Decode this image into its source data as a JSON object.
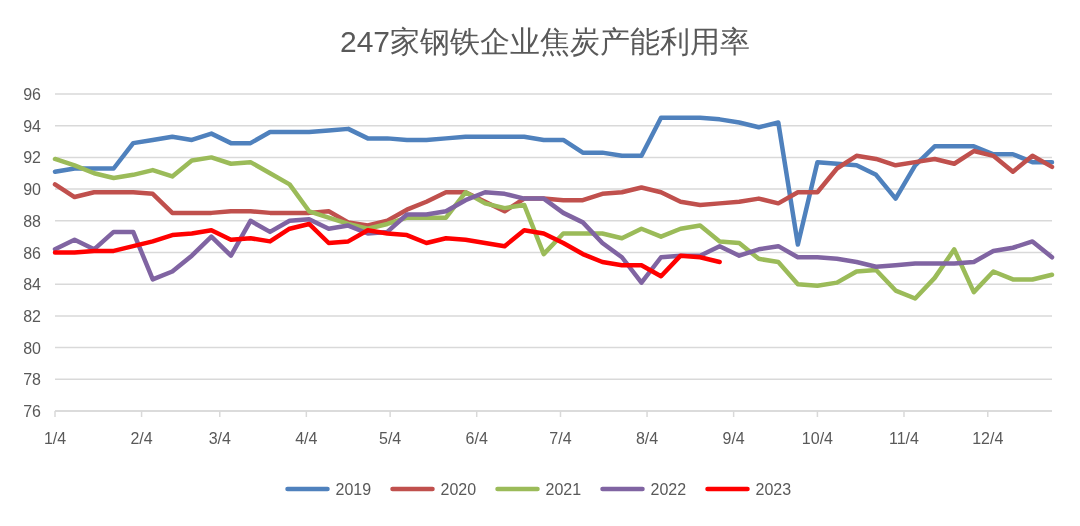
{
  "chart_data": {
    "type": "line",
    "title": "247家钢铁企业焦炭产能利用率",
    "x": [
      "--01-04",
      "--01-11",
      "--01-18",
      "--01-25",
      "--02-01",
      "--02-08",
      "--02-15",
      "--02-22",
      "--03-01",
      "--03-08",
      "--03-15",
      "--03-22",
      "--03-29",
      "--04-05",
      "--04-12",
      "--04-19",
      "--04-26",
      "--05-03",
      "--05-10",
      "--05-17",
      "--05-24",
      "--05-31",
      "--06-07",
      "--06-14",
      "--06-21",
      "--06-28",
      "--07-05",
      "--07-12",
      "--07-19",
      "--07-26",
      "--08-02",
      "--08-09",
      "--08-16",
      "--08-23",
      "--08-30",
      "--09-06",
      "--09-13",
      "--09-20",
      "--09-27",
      "--10-04",
      "--10-11",
      "--10-18",
      "--10-25",
      "--11-01",
      "--11-08",
      "--11-15",
      "--11-22",
      "--11-29",
      "--12-06",
      "--12-13",
      "--12-20",
      "--12-27"
    ],
    "xlim": [
      "--01-04",
      "--12-27"
    ],
    "xticks": [
      {
        "value": "--01-04",
        "label": "1/4"
      },
      {
        "value": "--02-04",
        "label": "2/4"
      },
      {
        "value": "--03-04",
        "label": "3/4"
      },
      {
        "value": "--04-04",
        "label": "4/4"
      },
      {
        "value": "--05-04",
        "label": "5/4"
      },
      {
        "value": "--06-04",
        "label": "6/4"
      },
      {
        "value": "--07-04",
        "label": "7/4"
      },
      {
        "value": "--08-04",
        "label": "8/4"
      },
      {
        "value": "--09-04",
        "label": "9/4"
      },
      {
        "value": "--10-04",
        "label": "10/4"
      },
      {
        "value": "--11-04",
        "label": "11/4"
      },
      {
        "value": "--12-04",
        "label": "12/4"
      }
    ],
    "ylim": [
      76,
      96
    ],
    "yticks": [
      76,
      78,
      80,
      82,
      84,
      86,
      88,
      90,
      92,
      94,
      96
    ],
    "grid": "y",
    "legend": "bottom",
    "line_style": "solid",
    "series": [
      {
        "name": "2019",
        "color": "#4f81bd",
        "values": [
          91.1,
          91.3,
          91.3,
          91.3,
          92.9,
          93.1,
          93.3,
          93.1,
          93.5,
          92.9,
          92.9,
          93.6,
          93.6,
          93.6,
          93.7,
          93.8,
          93.2,
          93.2,
          93.1,
          93.1,
          93.2,
          93.3,
          93.3,
          93.3,
          93.3,
          93.1,
          93.1,
          92.3,
          92.3,
          92.1,
          92.1,
          94.5,
          94.5,
          94.5,
          94.4,
          94.2,
          93.9,
          94.2,
          86.5,
          91.7,
          91.6,
          91.5,
          90.9,
          89.4,
          91.5,
          92.7,
          92.7,
          92.7,
          92.2,
          92.2,
          91.7,
          91.7
        ]
      },
      {
        "name": "2020",
        "color": "#c0504d",
        "values": [
          90.3,
          89.5,
          89.8,
          89.8,
          89.8,
          89.7,
          88.5,
          88.5,
          88.5,
          88.6,
          88.6,
          88.5,
          88.5,
          88.5,
          88.6,
          87.9,
          87.7,
          88.0,
          88.7,
          89.2,
          89.8,
          89.8,
          89.2,
          88.6,
          89.4,
          89.4,
          89.3,
          89.3,
          89.7,
          89.8,
          90.1,
          89.8,
          89.2,
          89.0,
          89.1,
          89.2,
          89.4,
          89.1,
          89.8,
          89.8,
          91.3,
          92.1,
          91.9,
          91.5,
          91.7,
          91.9,
          91.6,
          92.4,
          92.1,
          91.1,
          92.1,
          91.4
        ]
      },
      {
        "name": "2021",
        "color": "#9bbb59",
        "values": [
          91.9,
          91.5,
          91.0,
          90.7,
          90.9,
          91.2,
          90.8,
          91.8,
          92.0,
          91.6,
          91.7,
          91.0,
          90.3,
          88.6,
          88.2,
          87.8,
          87.5,
          87.8,
          88.2,
          88.2,
          88.2,
          89.8,
          89.1,
          88.8,
          89.0,
          85.9,
          87.2,
          87.2,
          87.2,
          86.9,
          87.5,
          87.0,
          87.5,
          87.7,
          86.7,
          86.6,
          85.6,
          85.4,
          84.0,
          83.9,
          84.1,
          84.8,
          84.9,
          83.6,
          83.1,
          84.4,
          86.2,
          83.5,
          84.8,
          84.3,
          84.3,
          84.6
        ]
      },
      {
        "name": "2022",
        "color": "#8064a2",
        "values": [
          86.2,
          86.8,
          86.2,
          87.3,
          87.3,
          84.3,
          84.8,
          85.8,
          87.0,
          85.8,
          88.0,
          87.3,
          88.0,
          88.1,
          87.5,
          87.7,
          87.2,
          87.3,
          88.4,
          88.4,
          88.6,
          89.3,
          89.8,
          89.7,
          89.4,
          89.4,
          88.5,
          87.9,
          86.6,
          85.7,
          84.1,
          85.7,
          85.8,
          85.8,
          86.4,
          85.8,
          86.2,
          86.4,
          85.7,
          85.7,
          85.6,
          85.4,
          85.1,
          85.2,
          85.3,
          85.3,
          85.3,
          85.4,
          86.1,
          86.3,
          86.7,
          85.7
        ]
      },
      {
        "name": "2023",
        "color": "#ff0000",
        "values": [
          86.0,
          86.0,
          86.1,
          86.1,
          86.4,
          86.7,
          87.1,
          87.2,
          87.4,
          86.8,
          86.9,
          86.7,
          87.5,
          87.8,
          86.6,
          86.7,
          87.4,
          87.2,
          87.1,
          86.6,
          86.9,
          86.8,
          86.6,
          86.4,
          87.4,
          87.2,
          86.6,
          85.9,
          85.4,
          85.2,
          85.2,
          84.5,
          85.8,
          85.7,
          85.4,
          null,
          null,
          null,
          null,
          null,
          null,
          null,
          null,
          null,
          null,
          null,
          null,
          null,
          null,
          null,
          null,
          null
        ]
      }
    ]
  }
}
